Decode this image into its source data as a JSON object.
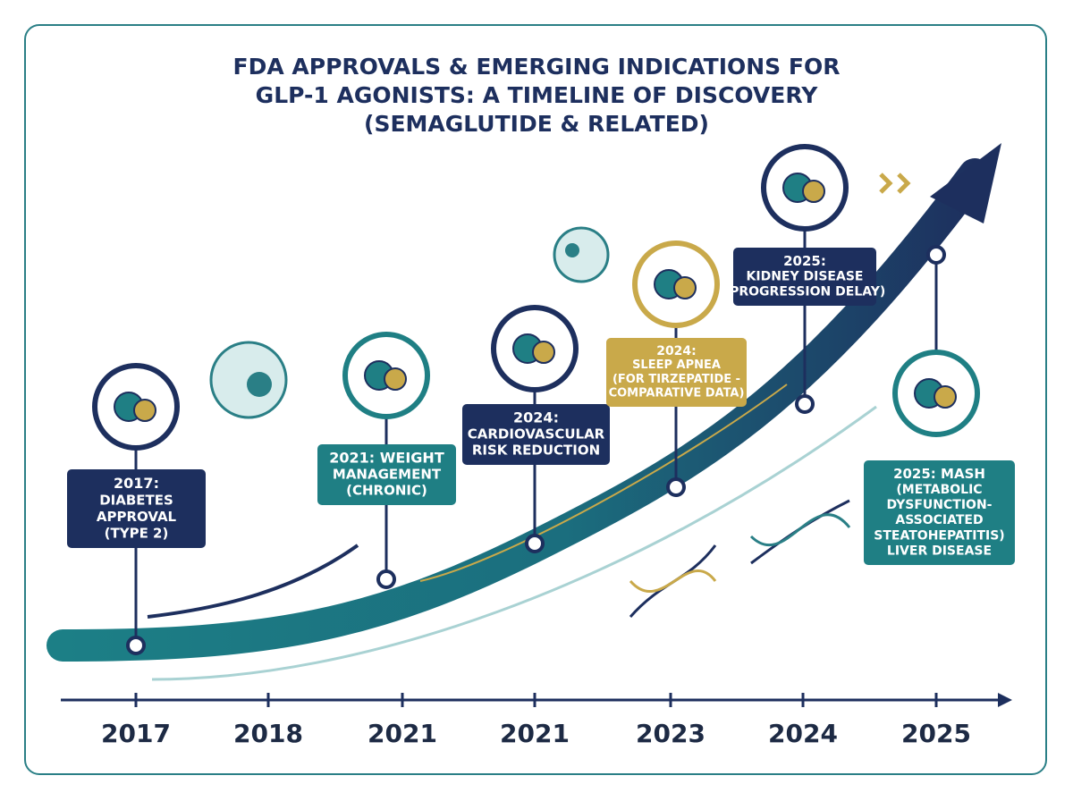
{
  "title": [
    "FDA APPROVALS & EMERGING INDICATIONS FOR",
    "GLP-1 AGONISTS: A TIMELINE OF DISCOVERY",
    "(SEMAGLUTIDE & RELATED)"
  ],
  "events": [
    {
      "lines": [
        "2017:",
        "DIABETES",
        "APPROVAL",
        "(TYPE 2)"
      ]
    },
    {
      "lines": [
        "2021: WEIGHT",
        "MANAGEMENT",
        "(CHRONIC)"
      ]
    },
    {
      "lines": [
        "2024:",
        "CARDIOVASCULAR",
        "RISK REDUCTION"
      ]
    },
    {
      "lines": [
        "2024:",
        "SLEEP APNEA",
        "(FOR TIRZEPATIDE -",
        "COMPARATIVE DATA)"
      ]
    },
    {
      "lines": [
        "2025:",
        "KIDNEY DISEASE",
        "(PROGRESSION DELAY)"
      ]
    },
    {
      "lines": [
        "2025: MASH",
        "(METABOLIC",
        "DYSFUNCTION-",
        "ASSOCIATED",
        "STEATOHEPATITIS)",
        "LIVER DISEASE"
      ]
    }
  ],
  "axis": {
    "years": [
      "2017",
      "2018",
      "2021",
      "2021",
      "2023",
      "2024",
      "2025"
    ]
  }
}
